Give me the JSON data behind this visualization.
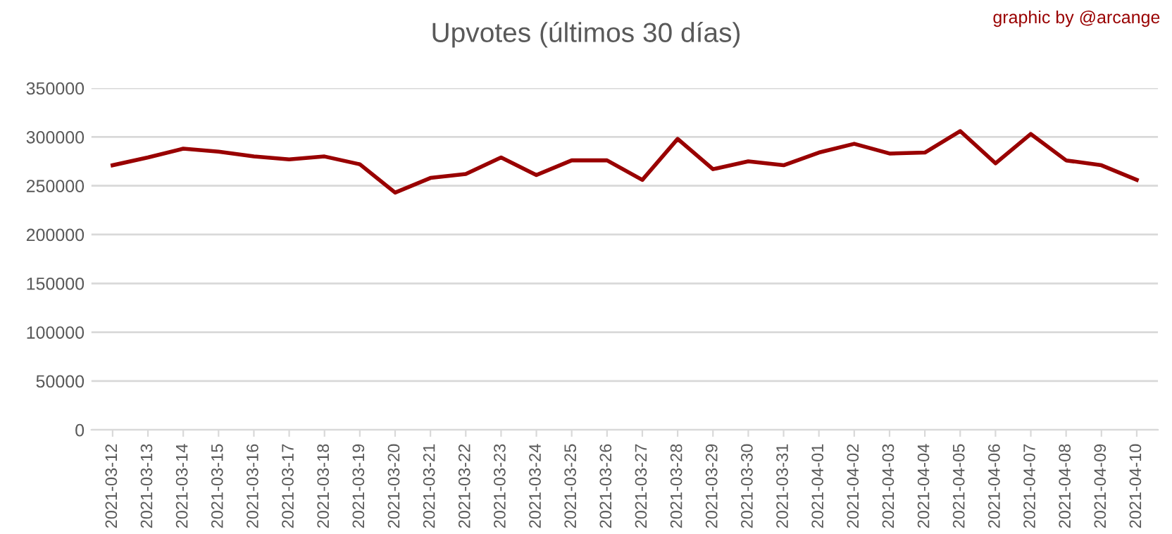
{
  "chart_data": {
    "type": "line",
    "title": "Upvotes (últimos 30 días)",
    "annotations": [
      "graphic by @arcange"
    ],
    "categories": [
      "2021-03-12",
      "2021-03-13",
      "2021-03-14",
      "2021-03-15",
      "2021-03-16",
      "2021-03-17",
      "2021-03-18",
      "2021-03-19",
      "2021-03-20",
      "2021-03-21",
      "2021-03-22",
      "2021-03-23",
      "2021-03-24",
      "2021-03-25",
      "2021-03-26",
      "2021-03-27",
      "2021-03-28",
      "2021-03-29",
      "2021-03-30",
      "2021-03-31",
      "2021-04-01",
      "2021-04-02",
      "2021-04-03",
      "2021-04-04",
      "2021-04-05",
      "2021-04-06",
      "2021-04-07",
      "2021-04-08",
      "2021-04-09",
      "2021-04-10"
    ],
    "series": [
      {
        "color": "#990000",
        "values": [
          271000,
          279000,
          288000,
          285000,
          280000,
          277000,
          280000,
          272000,
          243000,
          258000,
          262000,
          279000,
          261000,
          276000,
          276000,
          256000,
          298000,
          267000,
          275000,
          271000,
          284000,
          293000,
          283000,
          284000,
          306000,
          273000,
          303000,
          276000,
          271000,
          256000
        ]
      }
    ],
    "ylim": [
      0,
      350000
    ],
    "yticks": [
      0,
      50000,
      100000,
      150000,
      200000,
      250000,
      300000,
      350000
    ],
    "grid": "y",
    "legend": false,
    "marker": "none",
    "line_style": "solid"
  }
}
